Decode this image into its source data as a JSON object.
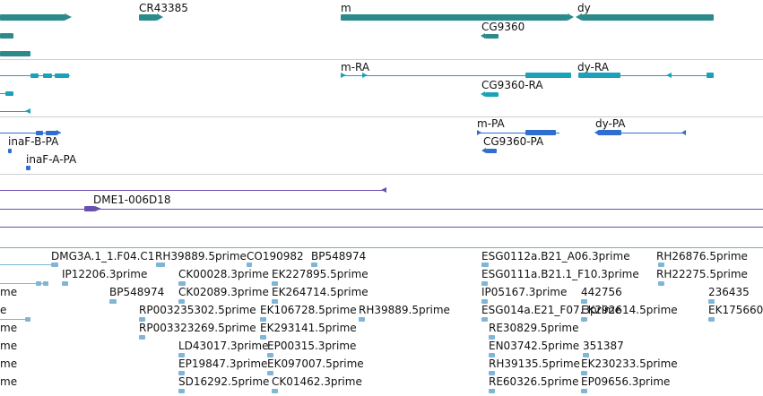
{
  "colors": {
    "gene": "#2c8a8c",
    "mrna": "#1aa2ba",
    "protein": "#2f6fcf",
    "clone": "#6a4fb0",
    "est": "#7fb6d6",
    "divider": "#c9cfd3",
    "text": "#111111"
  },
  "tracks": {
    "genes": {
      "features": [
        {
          "label": "CR43385"
        },
        {
          "label": "m"
        },
        {
          "label": "dy"
        },
        {
          "label": "CG9360"
        }
      ]
    },
    "transcripts": {
      "features": [
        {
          "label": "m-RA"
        },
        {
          "label": "dy-RA"
        },
        {
          "label": "CG9360-RA"
        }
      ]
    },
    "proteins": {
      "features": [
        {
          "label": "inaF-B-PA"
        },
        {
          "label": "inaF-A-PA"
        },
        {
          "label": "m-PA"
        },
        {
          "label": "dy-PA"
        },
        {
          "label": "CG9360-PA"
        }
      ]
    },
    "clones": {
      "features": [
        {
          "label": "DME1-006D18"
        }
      ]
    },
    "ests": {
      "labels": [
        "DMG3A.1_1.F04.C1",
        "RH39889.5prime",
        "CO190982",
        "BP548974",
        "ESG0112a.B21_A06.3prime",
        "RH26876.5prime",
        "IP12206.3prime",
        "CK00028.3prime",
        "EK227895.5prime",
        "ESG0111a.B21.1_F10.3prime",
        "RH22275.5prime",
        "me",
        "BP548974",
        "CK02089.3prime",
        "EK264714.5prime",
        "IP05167.3prime",
        "442756",
        "236435",
        "e",
        "RP003235302.5prime",
        "EK106728.5prime",
        "RH39889.5prime",
        "ESG014a.E21_F07.3prime",
        "EK292614.5prime",
        "EK175660",
        "me",
        "RP003323269.5prime",
        "EK293141.5prime",
        "RE30829.5prime",
        "me",
        "LD43017.3prime",
        "EP00315.3prime",
        "EN03742.5prime",
        "351387",
        "me",
        "EP19847.3prime",
        "EK097007.5prime",
        "RH39135.5prime",
        "EK230233.5prime",
        "me",
        "SD16292.5prime",
        "CK01462.3prime",
        "RE60326.5prime",
        "EP09656.3prime"
      ]
    }
  }
}
